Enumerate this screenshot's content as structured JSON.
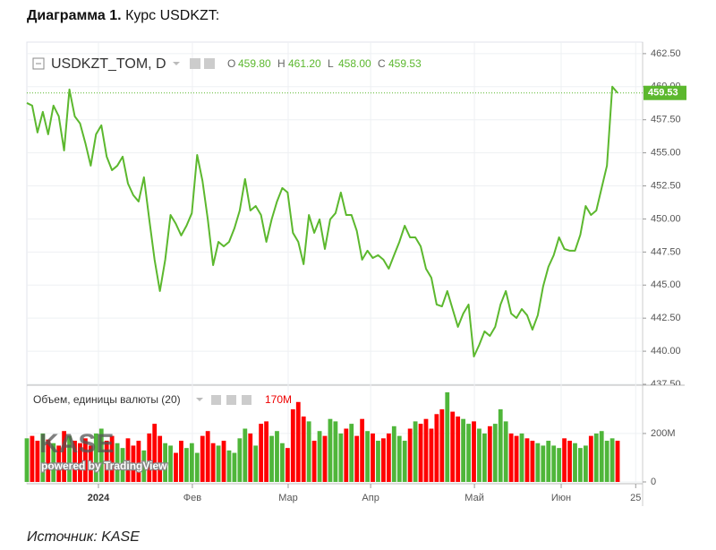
{
  "heading": {
    "bold": "Диаграмма 1.",
    "text": "Курс USDKZT:"
  },
  "source": "Источник: KASE",
  "watermark": [
    "KASE",
    "powered by TradingView"
  ],
  "chart_data": [
    {
      "type": "line",
      "title": "USDKZT_TOM, D",
      "ohlc": [
        {
          "key": "O",
          "value": "459.80"
        },
        {
          "key": "H",
          "value": "461.20"
        },
        {
          "key": "L",
          "value": "458.00"
        },
        {
          "key": "C",
          "value": "459.53"
        }
      ],
      "ylim": [
        437.5,
        462.83
      ],
      "yticks": [
        {
          "value": 437.5,
          "label": "437.50"
        },
        {
          "value": 440,
          "label": "440.00"
        },
        {
          "value": 442.5,
          "label": "442.50"
        },
        {
          "value": 445,
          "label": "445.00"
        },
        {
          "value": 447.5,
          "label": "447.50"
        },
        {
          "value": 450,
          "label": "450.00"
        },
        {
          "value": 452.5,
          "label": "452.50"
        },
        {
          "value": 455,
          "label": "455.00"
        },
        {
          "value": 457.5,
          "label": "457.50"
        },
        {
          "value": 460,
          "label": "460.00"
        },
        {
          "value": 462.5,
          "label": "462.50"
        }
      ],
      "grid": true,
      "series": [
        {
          "name": "USDKZT_TOM",
          "color": "#5cb82e",
          "values": [
            458.77,
            458.57,
            456.54,
            458.1,
            456.4,
            458.57,
            457.76,
            455.18,
            459.79,
            457.76,
            457.22,
            455.73,
            454.03,
            456.4,
            457.08,
            454.71,
            453.69,
            454.03,
            454.71,
            452.68,
            451.8,
            451.32,
            453.15,
            449.97,
            446.92,
            444.55,
            446.92,
            450.3,
            449.63,
            448.75,
            449.49,
            450.44,
            454.84,
            452.88,
            449.97,
            446.51,
            448.27,
            447.93,
            448.27,
            449.29,
            450.64,
            453.02,
            450.64,
            450.98,
            450.3,
            448.27,
            449.97,
            451.32,
            452.34,
            452.0,
            448.95,
            448.27,
            446.58,
            450.3,
            448.95,
            449.97,
            447.73,
            449.97,
            450.44,
            452.0,
            450.3,
            450.3,
            449.09,
            446.92,
            447.6,
            447.05,
            447.26,
            446.92,
            446.24,
            447.26,
            448.27,
            449.49,
            448.61,
            448.61,
            447.93,
            446.24,
            445.56,
            443.53,
            443.39,
            444.55,
            443.19,
            441.84,
            442.85,
            443.53,
            439.6,
            440.48,
            441.5,
            441.16,
            441.84,
            443.53,
            444.55,
            442.85,
            442.51,
            443.19,
            442.72,
            441.63,
            442.72,
            444.89,
            446.38,
            447.26,
            448.61,
            447.73,
            447.6,
            447.6,
            448.81,
            450.98,
            450.3,
            450.64,
            452.34,
            454.03,
            460.0,
            459.53
          ]
        }
      ]
    },
    {
      "type": "bar",
      "title": "Объем, единицы валюты (20)",
      "legend_value": "170M",
      "up_color": "#4fb63a",
      "down_color": "#ff0000",
      "ylim": [
        0,
        392000000.0
      ],
      "yticks": [
        0,
        {
          "value": 200000000.0,
          "label": "200M"
        }
      ],
      "xlim": [
        0,
        115.7
      ],
      "xticks": [
        {
          "value": 13.45,
          "label": "2024"
        },
        {
          "value": 31.1,
          "label": "Фев"
        },
        {
          "value": 49.1,
          "label": "Мар"
        },
        {
          "value": 64.6,
          "label": "Апр"
        },
        {
          "value": 84.1,
          "label": "Май"
        },
        {
          "value": 100.4,
          "label": "Июн"
        },
        {
          "value": 114.4,
          "label": "25"
        }
      ],
      "values": [
        180000000.0,
        190000000.0,
        170000000.0,
        200000000.0,
        175000000.0,
        160000000.0,
        150000000.0,
        210000000.0,
        190000000.0,
        170000000.0,
        160000000.0,
        180000000.0,
        150000000.0,
        200000000.0,
        220000000.0,
        170000000.0,
        190000000.0,
        160000000.0,
        140000000.0,
        180000000.0,
        150000000.0,
        170000000.0,
        130000000.0,
        200000000.0,
        240000000.0,
        190000000.0,
        160000000.0,
        150000000.0,
        120000000.0,
        170000000.0,
        140000000.0,
        160000000.0,
        120000000.0,
        190000000.0,
        210000000.0,
        160000000.0,
        150000000.0,
        170000000.0,
        130000000.0,
        120000000.0,
        180000000.0,
        220000000.0,
        200000000.0,
        150000000.0,
        240000000.0,
        250000000.0,
        190000000.0,
        210000000.0,
        160000000.0,
        140000000.0,
        300000000.0,
        330000000.0,
        270000000.0,
        250000000.0,
        170000000.0,
        210000000.0,
        190000000.0,
        260000000.0,
        250000000.0,
        200000000.0,
        220000000.0,
        240000000.0,
        190000000.0,
        260000000.0,
        210000000.0,
        200000000.0,
        170000000.0,
        180000000.0,
        200000000.0,
        230000000.0,
        190000000.0,
        170000000.0,
        220000000.0,
        250000000.0,
        240000000.0,
        260000000.0,
        220000000.0,
        280000000.0,
        300000000.0,
        370000000.0,
        290000000.0,
        270000000.0,
        260000000.0,
        240000000.0,
        250000000.0,
        220000000.0,
        200000000.0,
        230000000.0,
        240000000.0,
        300000000.0,
        250000000.0,
        200000000.0,
        190000000.0,
        200000000.0,
        180000000.0,
        170000000.0,
        160000000.0,
        150000000.0,
        170000000.0,
        150000000.0,
        140000000.0,
        180000000.0,
        170000000.0,
        160000000.0,
        140000000.0,
        150000000.0,
        190000000.0,
        200000000.0,
        210000000.0,
        170000000.0,
        180000000.0,
        170000000.0
      ]
    }
  ]
}
